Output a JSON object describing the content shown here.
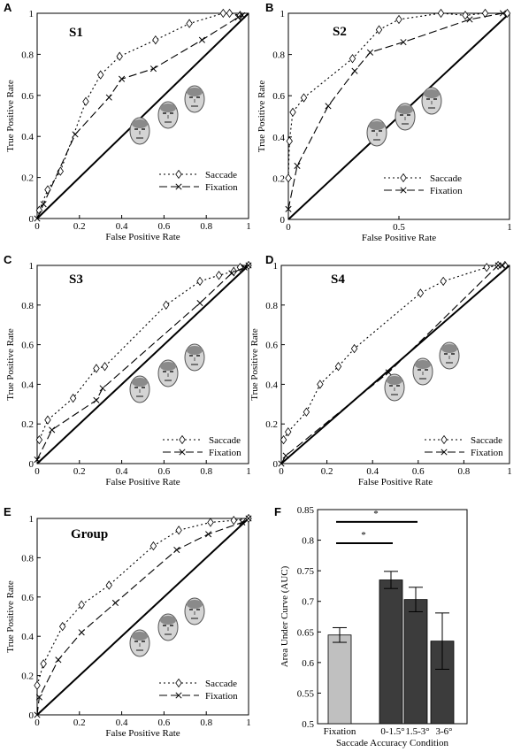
{
  "colors": {
    "fixation_bar": "#c0c0c0",
    "saccade_bar": "#3c3c3c",
    "significance": "#808080"
  },
  "legend": {
    "saccade": "Saccade",
    "fixation": "Fixation"
  },
  "chart_data": [
    {
      "id": "A",
      "type": "line",
      "title": "S1",
      "xlabel": "False Positive Rate",
      "ylabel": "True Positive Rate",
      "xlim": [
        0,
        1
      ],
      "ylim": [
        0,
        1
      ],
      "xticks": [
        "0",
        "0.2",
        "0.4",
        "0.6",
        "0.8",
        "1"
      ],
      "yticks": [
        "0",
        "0.2",
        "0.4",
        "0.6",
        "0.8",
        "1"
      ],
      "series": [
        {
          "name": "Saccade",
          "x": [
            0.01,
            0.05,
            0.11,
            0.23,
            0.3,
            0.39,
            0.56,
            0.72,
            0.88,
            0.91,
            0.96
          ],
          "y": [
            0.04,
            0.14,
            0.23,
            0.57,
            0.7,
            0.79,
            0.87,
            0.95,
            1.0,
            1.0,
            0.99
          ]
        },
        {
          "name": "Fixation",
          "x": [
            0.0,
            0.03,
            0.18,
            0.34,
            0.4,
            0.55,
            0.78,
            0.95,
            0.97
          ],
          "y": [
            0.0,
            0.07,
            0.41,
            0.59,
            0.68,
            0.73,
            0.87,
            0.98,
            0.99
          ]
        }
      ]
    },
    {
      "id": "B",
      "type": "line",
      "title": "S2",
      "xlabel": "False Positive Rate",
      "ylabel": "True Positive Rate",
      "xlim": [
        0,
        1
      ],
      "ylim": [
        0,
        1
      ],
      "xticks": [
        "0",
        "0.5",
        "1"
      ],
      "yticks": [
        "0",
        "0.2",
        "0.4",
        "0.6",
        "0.8",
        "1"
      ],
      "series": [
        {
          "name": "Saccade",
          "x": [
            0.0,
            0.005,
            0.02,
            0.07,
            0.29,
            0.41,
            0.5,
            0.69,
            0.8,
            0.89,
            0.99
          ],
          "y": [
            0.2,
            0.38,
            0.52,
            0.59,
            0.78,
            0.92,
            0.97,
            1.0,
            0.99,
            1.0,
            1.0
          ]
        },
        {
          "name": "Fixation",
          "x": [
            0.0,
            0.04,
            0.18,
            0.3,
            0.37,
            0.52,
            0.82,
            0.97
          ],
          "y": [
            0.05,
            0.26,
            0.55,
            0.72,
            0.81,
            0.86,
            0.97,
            1.0
          ]
        }
      ]
    },
    {
      "id": "C",
      "type": "line",
      "title": "S3",
      "xlabel": "False Positive Rate",
      "ylabel": "True Positive Rate",
      "xlim": [
        0,
        1
      ],
      "ylim": [
        0,
        1
      ],
      "xticks": [
        "0",
        "0.2",
        "0.4",
        "0.6",
        "0.8",
        "1"
      ],
      "yticks": [
        "0",
        "0.2",
        "0.4",
        "0.6",
        "0.8",
        "1"
      ],
      "series": [
        {
          "name": "Saccade",
          "x": [
            0.01,
            0.05,
            0.17,
            0.28,
            0.32,
            0.61,
            0.77,
            0.86,
            0.93,
            0.96,
            1.0
          ],
          "y": [
            0.12,
            0.22,
            0.33,
            0.48,
            0.49,
            0.8,
            0.92,
            0.95,
            0.97,
            0.99,
            1.0
          ]
        },
        {
          "name": "Fixation",
          "x": [
            0.0,
            0.07,
            0.28,
            0.31,
            0.77,
            0.92,
            0.98,
            1.0
          ],
          "y": [
            0.02,
            0.17,
            0.32,
            0.38,
            0.81,
            0.96,
            0.99,
            1.0
          ]
        }
      ]
    },
    {
      "id": "D",
      "type": "line",
      "title": "S4",
      "xlabel": "False Positive Rate",
      "ylabel": "True Positive Rate",
      "xlim": [
        0,
        1
      ],
      "ylim": [
        0,
        1
      ],
      "xticks": [
        "0",
        "0.2",
        "0.4",
        "0.6",
        "0.8",
        "1"
      ],
      "yticks": [
        "0",
        "0.2",
        "0.4",
        "0.6",
        "0.8",
        "1"
      ],
      "series": [
        {
          "name": "Saccade",
          "x": [
            0.01,
            0.03,
            0.11,
            0.17,
            0.25,
            0.32,
            0.61,
            0.71,
            0.9,
            0.95,
            0.98
          ],
          "y": [
            0.12,
            0.16,
            0.26,
            0.4,
            0.49,
            0.58,
            0.86,
            0.92,
            0.99,
            1.0,
            1.0
          ]
        },
        {
          "name": "Fixation",
          "x": [
            0.0,
            0.02,
            0.47,
            0.95,
            0.97
          ],
          "y": [
            0.0,
            0.04,
            0.46,
            1.0,
            1.0
          ]
        }
      ]
    },
    {
      "id": "E",
      "type": "line",
      "title": "Group",
      "xlabel": "False Positive Rate",
      "ylabel": "True Positive Rate",
      "xlim": [
        0,
        1
      ],
      "ylim": [
        0,
        1
      ],
      "xticks": [
        "0",
        "0.2",
        "0.4",
        "0.6",
        "0.8",
        "1"
      ],
      "yticks": [
        "0",
        "0.2",
        "0.4",
        "0.6",
        "0.8",
        "1"
      ],
      "series": [
        {
          "name": "Saccade",
          "x": [
            0.0,
            0.03,
            0.12,
            0.21,
            0.34,
            0.55,
            0.67,
            0.82,
            0.93,
            1.0
          ],
          "y": [
            0.15,
            0.26,
            0.45,
            0.56,
            0.66,
            0.86,
            0.94,
            0.98,
            0.99,
            1.0
          ]
        },
        {
          "name": "Fixation",
          "x": [
            0.0,
            0.01,
            0.1,
            0.21,
            0.37,
            0.66,
            0.81,
            0.97,
            1.0
          ],
          "y": [
            0.0,
            0.09,
            0.28,
            0.42,
            0.57,
            0.84,
            0.92,
            0.98,
            1.0
          ]
        }
      ]
    },
    {
      "id": "F",
      "type": "bar",
      "xlabel": "Saccade Accuracy Condition",
      "ylabel": "Area Under Curve (AUC)",
      "ylim": [
        0.5,
        0.85
      ],
      "yticks": [
        "0.5",
        "0.55",
        "0.6",
        "0.65",
        "0.7",
        "0.75",
        "0.8",
        "0.85"
      ],
      "categories": [
        "Fixation",
        "0-1.5°",
        "1.5-3°",
        "3-6°"
      ],
      "values": [
        0.645,
        0.735,
        0.703,
        0.635
      ],
      "errors": [
        0.012,
        0.014,
        0.02,
        0.046
      ],
      "significance": [
        {
          "from": 0,
          "to": 1,
          "y": 0.795,
          "label": "*"
        },
        {
          "from": 0,
          "to": 2,
          "y": 0.83,
          "label": "*"
        }
      ]
    }
  ]
}
